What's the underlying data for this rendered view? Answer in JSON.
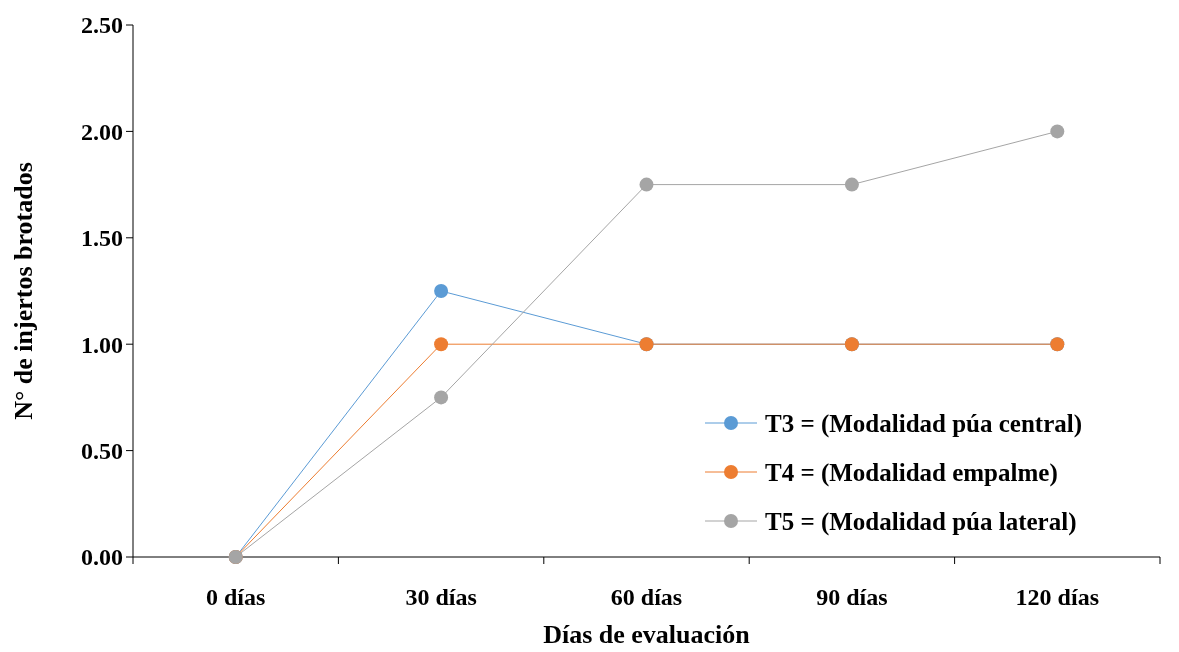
{
  "chart_data": {
    "type": "line",
    "xlabel": "Días de evaluación",
    "ylabel": "N° de injertos brotados",
    "categories": [
      "0 días",
      "30 días",
      "60 días",
      "90 días",
      "120 días"
    ],
    "series": [
      {
        "name": "T3 = (Modalidad púa central)",
        "color": "#5b9bd5",
        "values": [
          0,
          1.25,
          1,
          1,
          1
        ]
      },
      {
        "name": "T4 = (Modalidad empalme)",
        "color": "#ed7d31",
        "values": [
          0,
          1,
          1,
          1,
          1
        ]
      },
      {
        "name": "T5 = (Modalidad púa lateral)",
        "color": "#a5a5a5",
        "values": [
          0,
          0.75,
          1.75,
          1.75,
          2
        ]
      }
    ],
    "ylim": [
      0,
      2.5
    ],
    "yticks": [
      {
        "value": 0,
        "label": "0.00"
      },
      {
        "value": 0.5,
        "label": "0.50"
      },
      {
        "value": 1,
        "label": "1.00"
      },
      {
        "value": 1.5,
        "label": "1.50"
      },
      {
        "value": 2,
        "label": "2.00"
      },
      {
        "value": 2.5,
        "label": "2.50"
      }
    ],
    "grid": false,
    "legend": "bottom right",
    "marker": "circle",
    "line_style": "solid"
  }
}
